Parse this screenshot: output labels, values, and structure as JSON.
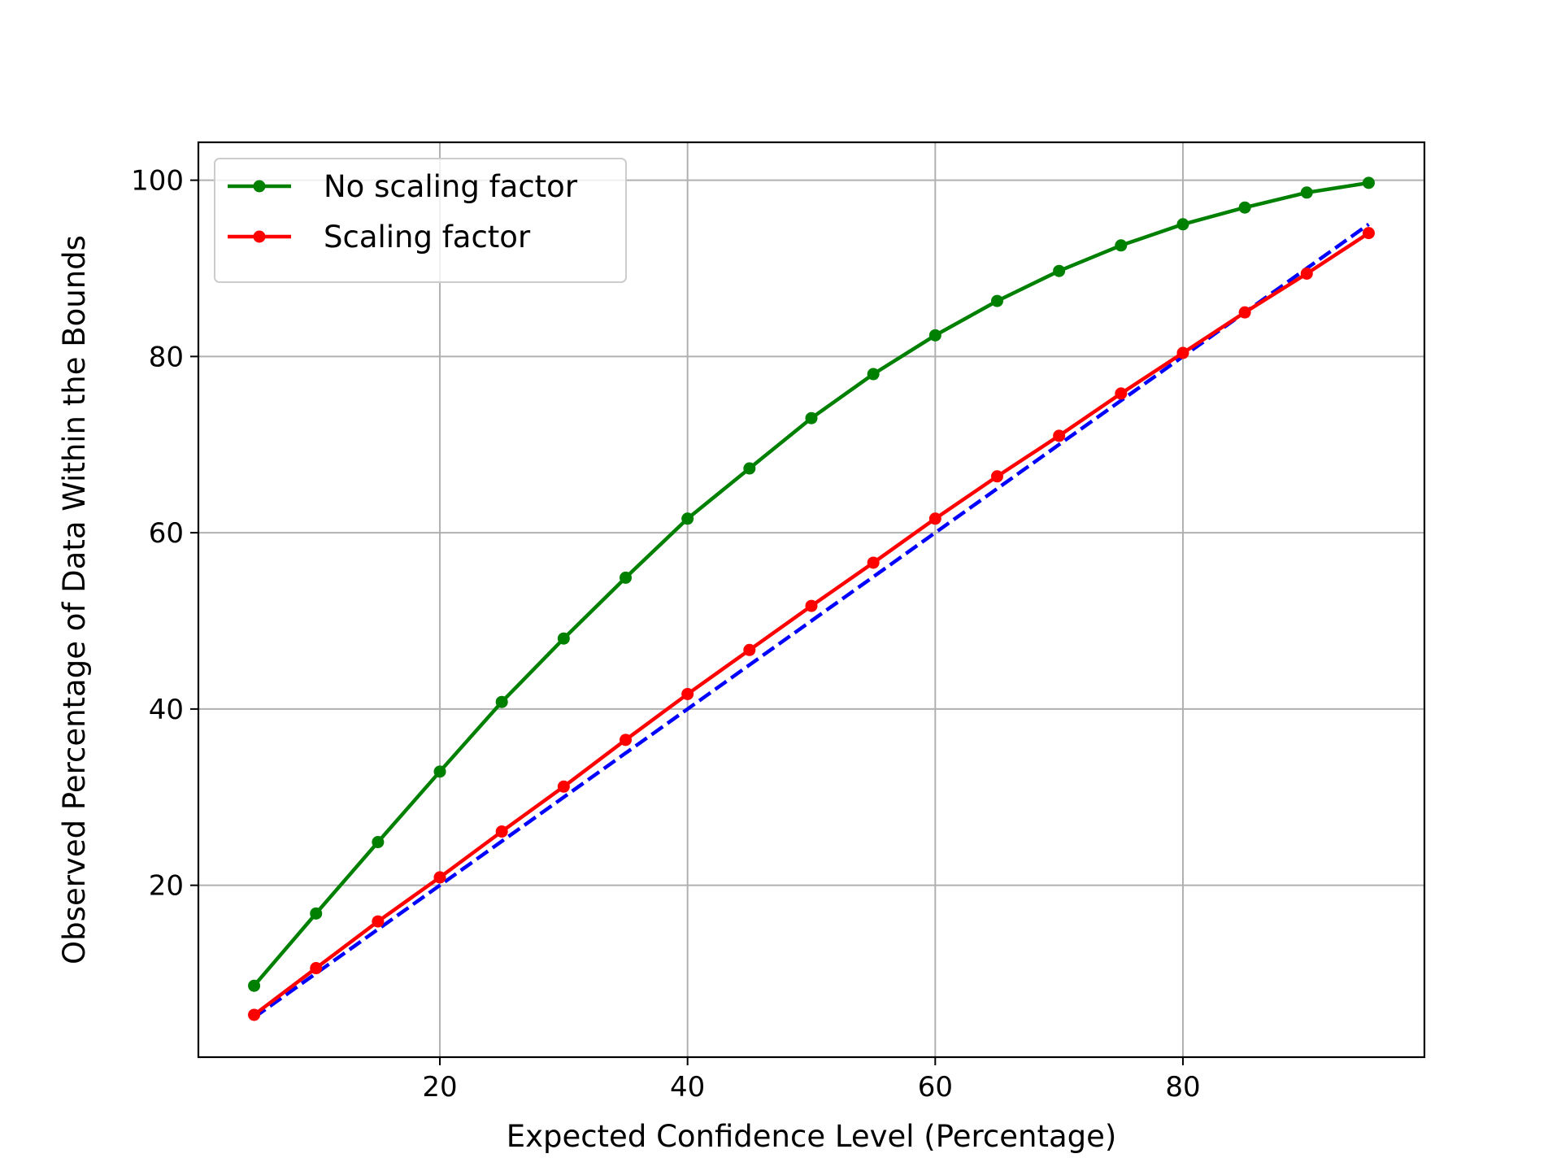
{
  "chart_data": {
    "type": "line",
    "title": "",
    "xlabel": "Expected Confidence Level (Percentage)",
    "ylabel": "Observed Percentage of Data Within the Bounds",
    "xlim": [
      0.5,
      99.5
    ],
    "ylim": [
      0.5,
      104.3
    ],
    "xticks": [
      20,
      40,
      60,
      80
    ],
    "yticks": [
      20,
      40,
      60,
      80,
      100
    ],
    "grid": true,
    "legend_position": "top-left",
    "x": [
      5,
      10,
      15,
      20,
      25,
      30,
      35,
      40,
      45,
      50,
      55,
      60,
      65,
      70,
      75,
      80,
      85,
      90,
      95
    ],
    "series": [
      {
        "name": "No scaling factor",
        "color": "#008000",
        "style": "solid",
        "marker": true,
        "values": [
          8.6,
          16.8,
          24.9,
          32.9,
          40.8,
          48.0,
          54.9,
          61.6,
          67.3,
          73.0,
          78.0,
          82.4,
          86.3,
          89.7,
          92.6,
          95.0,
          96.9,
          98.6,
          99.7
        ]
      },
      {
        "name": "Scaling factor",
        "color": "#ff0000",
        "style": "solid",
        "marker": true,
        "values": [
          5.3,
          10.6,
          15.9,
          20.9,
          26.1,
          31.2,
          36.5,
          41.7,
          46.7,
          51.7,
          56.6,
          61.6,
          66.4,
          71.0,
          75.8,
          80.4,
          85.0,
          89.4,
          94.0
        ]
      },
      {
        "name": "",
        "color": "#0000ff",
        "style": "dashed",
        "marker": false,
        "values": [
          5,
          10,
          15,
          20,
          25,
          30,
          35,
          40,
          45,
          50,
          55,
          60,
          65,
          70,
          75,
          80,
          85,
          90,
          95
        ]
      }
    ]
  }
}
